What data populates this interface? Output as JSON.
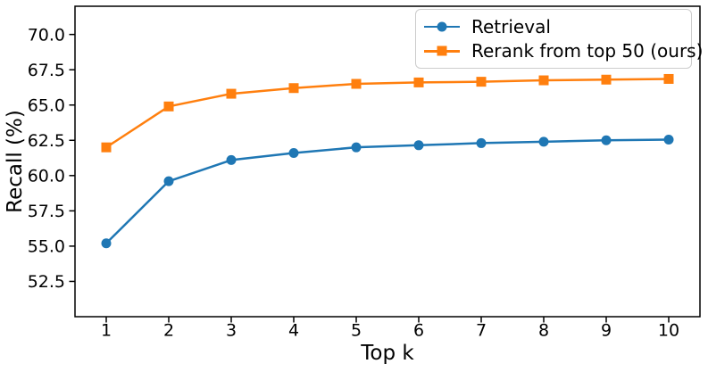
{
  "figure": {
    "background": "#ffffff",
    "text_color": "#000000"
  },
  "chart_data": {
    "type": "line",
    "title": "",
    "xlabel": "Top k",
    "ylabel": "Recall (%)",
    "x": [
      1,
      2,
      3,
      4,
      5,
      6,
      7,
      8,
      9,
      10
    ],
    "xlim": [
      0.5,
      10.5
    ],
    "ylim": [
      50,
      72
    ],
    "xticks": [
      1,
      2,
      3,
      4,
      5,
      6,
      7,
      8,
      9,
      10
    ],
    "xtick_labels": [
      "1",
      "2",
      "3",
      "4",
      "5",
      "6",
      "7",
      "8",
      "9",
      "10"
    ],
    "yticks": [
      52.5,
      55.0,
      57.5,
      60.0,
      62.5,
      65.0,
      67.5,
      70.0
    ],
    "ytick_labels": [
      "52.5",
      "55.0",
      "57.5",
      "60.0",
      "62.5",
      "65.0",
      "67.5",
      "70.0"
    ],
    "grid": false,
    "legend_position": "upper right",
    "series": [
      {
        "name": "Retrieval",
        "color": "#1f77b4",
        "marker": "circle",
        "values": [
          55.2,
          59.6,
          61.1,
          61.6,
          62.0,
          62.15,
          62.3,
          62.4,
          62.5,
          62.55
        ]
      },
      {
        "name": "Rerank from top 50 (ours)",
        "color": "#ff7f0e",
        "marker": "square",
        "values": [
          62.0,
          64.9,
          65.8,
          66.2,
          66.5,
          66.6,
          66.65,
          66.75,
          66.8,
          66.85
        ]
      }
    ]
  }
}
